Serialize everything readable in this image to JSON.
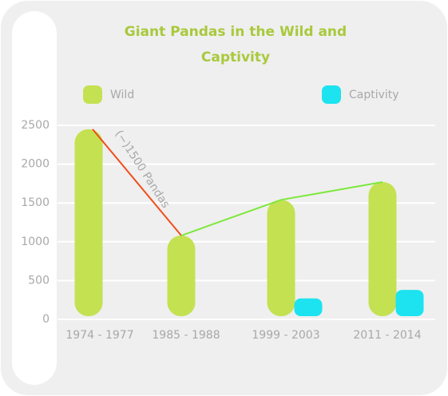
{
  "chart_data": {
    "type": "bar",
    "title": "Giant Pandas in the Wild and Captivity",
    "categories": [
      "1974 - 1977",
      "1985 - 1988",
      "1999 - 2003",
      "2011 - 2014"
    ],
    "series": [
      {
        "name": "Wild",
        "color": "#c4e152",
        "values": [
          2450,
          1080,
          1540,
          1770
        ]
      },
      {
        "name": "Captivity",
        "color": "#1de3f0",
        "values": [
          null,
          null,
          270,
          380
        ]
      }
    ],
    "ylim": [
      0,
      2500
    ],
    "yticks": [
      0,
      500,
      1000,
      1500,
      2000,
      2500
    ],
    "grid": true,
    "annotation": "(−)1500 Pandas",
    "trend_colors": [
      "#f04e1c",
      "#7de83a"
    ]
  }
}
